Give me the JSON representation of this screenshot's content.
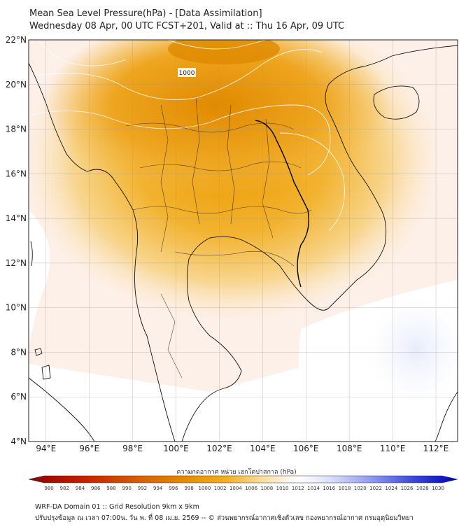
{
  "title": {
    "line1": "Mean Sea Level Pressure(hPa) - [Data Assimilation]",
    "line2": "Wednesday 08 Apr, 00 UTC FCST+201, Valid at :: Thu 16 Apr, 09 UTC"
  },
  "map": {
    "lat_ticks": [
      "22°N",
      "20°N",
      "18°N",
      "16°N",
      "14°N",
      "12°N",
      "10°N",
      "8°N",
      "6°N",
      "4°N"
    ],
    "lon_ticks": [
      "94°E",
      "96°E",
      "98°E",
      "100°E",
      "102°E",
      "104°E",
      "106°E",
      "108°E",
      "110°E",
      "112°E"
    ],
    "contour_label": "1000",
    "grid": true
  },
  "colorbar": {
    "label": "ความกดอากาศ หน่วย เฮกโตปาสกาล (hPa)",
    "ticks": [
      "980",
      "982",
      "984",
      "986",
      "988",
      "990",
      "992",
      "994",
      "996",
      "998",
      "1000",
      "1002",
      "1004",
      "1006",
      "1008",
      "1010",
      "1012",
      "1014",
      "1016",
      "1018",
      "1020",
      "1022",
      "1024",
      "1026",
      "1028",
      "1030"
    ],
    "low_color": "#8b0000",
    "mid_color": "#f0a000",
    "high_color": "#0000c8"
  },
  "footer": {
    "line1": "WRF-DA Domain 01 :: Grid Resolution 9km x 9km",
    "line2": "ปรับปรุงข้อมูล ณ เวลา 07:00น. วัน พ. ที่ 08 เม.ย. 2569 -- © ส่วนพยากรณ์อากาศเชิงตัวเลข กองพยากรณ์อากาศ กรมอุตุนิยมวิทยา"
  }
}
